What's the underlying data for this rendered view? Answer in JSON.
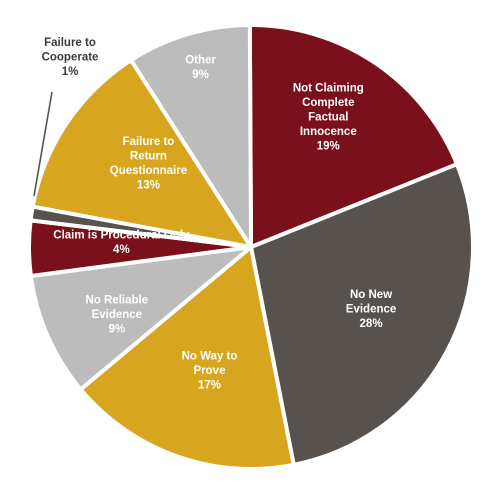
{
  "chart_data": {
    "type": "pie",
    "title": "",
    "slices": [
      {
        "label": "Not Claiming Complete Factual Innocence",
        "value": 19,
        "value_label": "19%",
        "color": "#7a1019",
        "text_color": "#ffffff",
        "label_lines": [
          "Not Claiming",
          "Complete",
          "Factual",
          "Innocence"
        ]
      },
      {
        "label": "No New Evidence",
        "value": 28,
        "value_label": "28%",
        "color": "#58524f",
        "text_color": "#ffffff",
        "label_lines": [
          "No New",
          "Evidence"
        ]
      },
      {
        "label": "No Way to Prove",
        "value": 17,
        "value_label": "17%",
        "color": "#d8a51f",
        "text_color": "#ffffff",
        "label_lines": [
          "No Way to",
          "Prove"
        ]
      },
      {
        "label": "No Reliable Evidence",
        "value": 9,
        "value_label": "9%",
        "color": "#bcbcbc",
        "text_color": "#ffffff",
        "label_lines": [
          "No Reliable",
          "Evidence"
        ]
      },
      {
        "label": "Claim is Procedural Only",
        "value": 4,
        "value_label": "4%",
        "color": "#7a1019",
        "text_color": "#ffffff",
        "label_lines": [
          "Claim is Procedural Only"
        ]
      },
      {
        "label": "Failure to Cooperate",
        "value": 1,
        "value_label": "1%",
        "color": "#58524f",
        "text_color": "#3a3a3a",
        "label_lines": [
          "Failure to",
          "Cooperate"
        ]
      },
      {
        "label": "Failure to Return Questionnaire",
        "value": 13,
        "value_label": "13%",
        "color": "#d8a51f",
        "text_color": "#ffffff",
        "label_lines": [
          "Failure to",
          "Return",
          "Questionnaire"
        ]
      },
      {
        "label": "Other",
        "value": 9,
        "value_label": "9%",
        "color": "#bcbcbc",
        "text_color": "#ffffff",
        "label_lines": [
          "Other"
        ]
      }
    ]
  }
}
